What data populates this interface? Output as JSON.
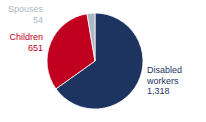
{
  "chart_data": {
    "type": "pie",
    "categories": [
      "Disabled\nworkers",
      "Children",
      "Spouses"
    ],
    "values": [
      1318,
      651,
      54
    ],
    "value_labels": [
      "1,318",
      "651",
      "54"
    ],
    "colors": [
      "#1d3461",
      "#c1001f",
      "#adb8c2"
    ]
  }
}
